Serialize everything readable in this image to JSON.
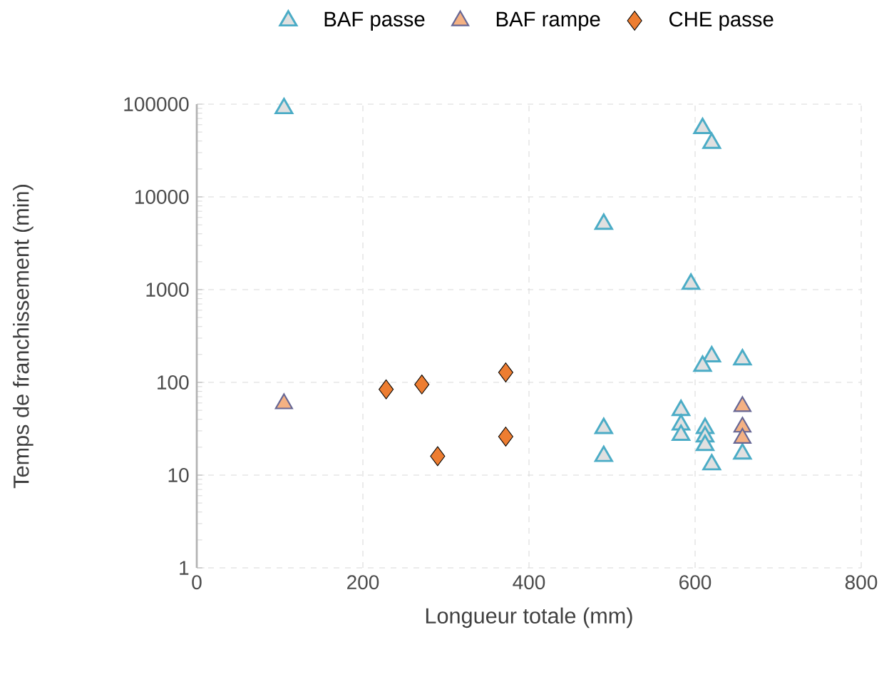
{
  "chart_data": {
    "type": "scatter",
    "xlabel": "Longueur totale (mm)",
    "ylabel": "Temps de franchissement (min)",
    "xlim": [
      0,
      800
    ],
    "xticks": [
      0,
      200,
      400,
      600,
      800
    ],
    "ylim": [
      1,
      100000
    ],
    "yticks": [
      1,
      10,
      100,
      1000,
      10000,
      100000
    ],
    "log": "y",
    "grid": true,
    "legend": "top",
    "series": [
      {
        "name": "BAF passe",
        "color": "#4bacc6",
        "marker": "triangle",
        "x": [
          105,
          490,
          490,
          490,
          595,
          609,
          620,
          620,
          609,
          657,
          583,
          583,
          583,
          612,
          612,
          612,
          620,
          657
        ],
        "values": [
          90000,
          5100,
          32,
          16,
          1150,
          55000,
          38000,
          190,
          150,
          176,
          50,
          35,
          27,
          32,
          26,
          21,
          13,
          17
        ]
      },
      {
        "name": "BAF rampe",
        "color": "#f4b183",
        "marker": "triangle",
        "x": [
          105,
          657,
          657,
          657
        ],
        "values": [
          59,
          55,
          33,
          25
        ]
      },
      {
        "name": "CHE passe",
        "color": "#ed7d31",
        "marker": "diamond",
        "x": [
          228,
          271,
          290,
          372,
          372
        ],
        "values": [
          84,
          95,
          16,
          128,
          26
        ]
      }
    ]
  }
}
